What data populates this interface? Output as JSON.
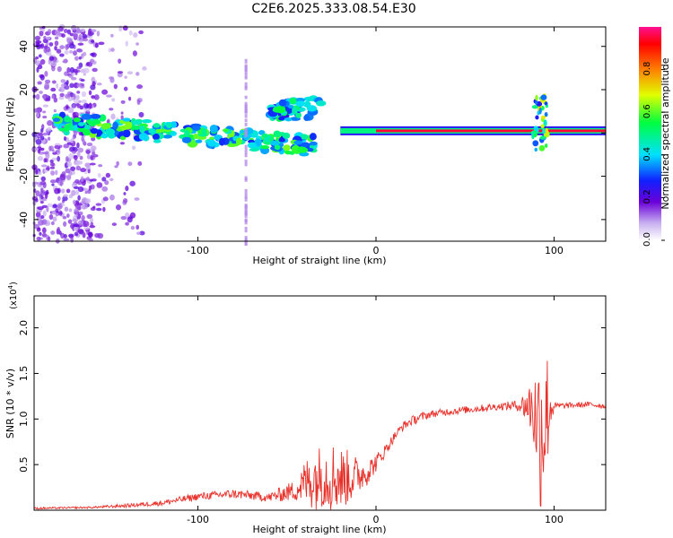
{
  "title": "C2E6.2025.333.08.54.E30",
  "chart_data": [
    {
      "type": "heatmap",
      "xlabel": "Height of straight line (km)",
      "ylabel": "Frequency (Hz)",
      "xlim": [
        -192,
        129
      ],
      "ylim": [
        -50,
        49
      ],
      "xticks": [
        -100,
        0,
        100
      ],
      "yticks": [
        -40,
        -20,
        0,
        20,
        40
      ],
      "colorbar": {
        "label": "Normalized spectral amplitude",
        "range": [
          0,
          1
        ],
        "ticks": [
          0.0,
          0.2,
          0.4,
          0.6,
          0.8
        ],
        "tick_labels": [
          "0.0",
          "0.2",
          "0.4",
          "0.6",
          "0.8"
        ]
      },
      "features": [
        {
          "name": "noise-band",
          "x_range": [
            -192,
            -130
          ],
          "freq_range": [
            -50,
            49
          ],
          "amplitude": 0.15
        },
        {
          "name": "descending-track",
          "x_start": -180,
          "f_start": 5,
          "x_end": -35,
          "f_end": -6,
          "amplitude": 0.45
        },
        {
          "name": "upper-branch",
          "x_start": -60,
          "f_start": 10,
          "x_end": -30,
          "f_end": 12,
          "amplitude": 0.4
        },
        {
          "name": "steady-tone",
          "x_start": -20,
          "f": 1,
          "x_end": 129,
          "amplitude": 0.95
        },
        {
          "name": "disturbance",
          "x_center": 92,
          "freq_range": [
            -8,
            18
          ],
          "amplitude": 0.5
        },
        {
          "name": "faint-column",
          "x_center": -73,
          "freq_range": [
            -50,
            35
          ],
          "amplitude": 0.1
        }
      ]
    },
    {
      "type": "line",
      "xlabel": "Height of straight line (km)",
      "ylabel": "SNR (10 * v/v)",
      "y_multiplier": "(x10",
      "y_multiplier_exp": "4",
      "y_multiplier_close": ")",
      "xlim": [
        -192,
        129
      ],
      "ylim": [
        0,
        2.35
      ],
      "xticks": [
        -100,
        0,
        100
      ],
      "yticks": [
        0.5,
        1.0,
        1.5,
        2.0
      ],
      "ytick_labels": [
        "0.5",
        "1.0",
        "1.5",
        "2.0"
      ],
      "series": [
        {
          "name": "SNR",
          "color": "#e8312a",
          "x": [
            -192,
            -160,
            -140,
            -120,
            -100,
            -80,
            -60,
            -45,
            -40,
            -35,
            -30,
            -25,
            -20,
            -15,
            -10,
            -5,
            0,
            5,
            10,
            15,
            20,
            25,
            30,
            40,
            50,
            60,
            70,
            80,
            85,
            88,
            90,
            92,
            94,
            96,
            98,
            100,
            110,
            120,
            129
          ],
          "y": [
            0.02,
            0.03,
            0.05,
            0.08,
            0.15,
            0.18,
            0.14,
            0.22,
            0.3,
            0.35,
            0.38,
            0.38,
            0.35,
            0.36,
            0.38,
            0.42,
            0.52,
            0.65,
            0.8,
            0.92,
            0.98,
            1.02,
            1.05,
            1.08,
            1.1,
            1.12,
            1.14,
            1.15,
            1.15,
            1.12,
            1.0,
            0.9,
            1.0,
            1.1,
            1.13,
            1.14,
            1.15,
            1.16,
            1.14
          ],
          "noise": [
            0.01,
            0.01,
            0.02,
            0.03,
            0.04,
            0.05,
            0.05,
            0.12,
            0.25,
            0.35,
            0.35,
            0.4,
            0.35,
            0.3,
            0.2,
            0.15,
            0.1,
            0.07,
            0.05,
            0.05,
            0.05,
            0.05,
            0.04,
            0.04,
            0.04,
            0.04,
            0.04,
            0.06,
            0.2,
            0.4,
            0.6,
            0.9,
            1.1,
            0.7,
            0.3,
            0.04,
            0.03,
            0.03,
            0.03
          ]
        }
      ]
    }
  ]
}
